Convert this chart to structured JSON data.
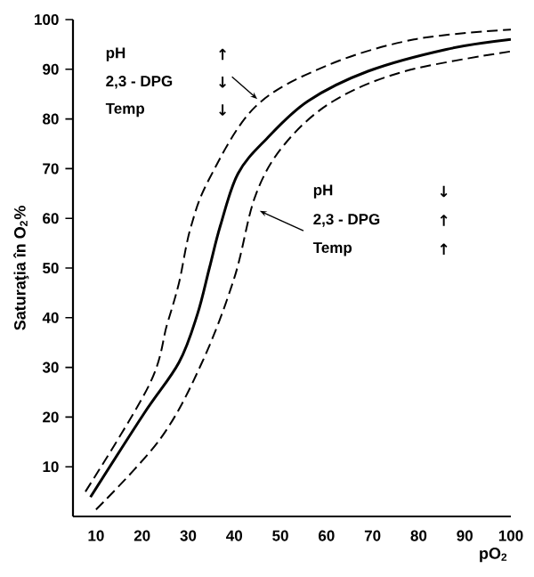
{
  "chart_data": {
    "type": "line",
    "xlabel": "pO$_{2}$",
    "ylabel": "Saturaţia în O$_{2}$%",
    "xlim": [
      5,
      100
    ],
    "ylim": [
      0,
      100
    ],
    "xticks": [
      10,
      20,
      30,
      40,
      50,
      60,
      70,
      80,
      90,
      100
    ],
    "yticks": [
      10,
      20,
      30,
      40,
      50,
      60,
      70,
      80,
      90,
      100
    ],
    "grid": false,
    "series": [
      {
        "color": "#000000",
        "line_style": "solid",
        "x": [
          8.8,
          20.4,
          28,
          32,
          34.6,
          37,
          40.8,
          47,
          56,
          69,
          86,
          100
        ],
        "values": [
          3.9,
          20.7,
          31,
          40.7,
          50,
          58.6,
          69,
          76,
          83.6,
          89.6,
          94,
          96
        ]
      },
      {
        "color": "#000000",
        "line_style": "dashed",
        "x": [
          7.7,
          21.5,
          25.4,
          28,
          30.5,
          34.6,
          44.6,
          60,
          79,
          100
        ],
        "values": [
          5,
          26.4,
          38.6,
          47,
          58,
          68,
          82.5,
          90.7,
          96,
          98
        ]
      },
      {
        "color": "#000000",
        "line_style": "dashed",
        "x": [
          10,
          24,
          33,
          40,
          44.6,
          51,
          61.5,
          77,
          100
        ],
        "values": [
          1.4,
          15.7,
          31,
          48,
          64.6,
          75,
          83.6,
          89.6,
          93.6
        ]
      }
    ],
    "annotations": [
      "pH",
      "↑",
      "2,3 - DPG",
      "↓",
      "Temp",
      "↓",
      "pH",
      "↓",
      "2,3 - DPG",
      "↑",
      "Temp",
      "↑"
    ]
  }
}
